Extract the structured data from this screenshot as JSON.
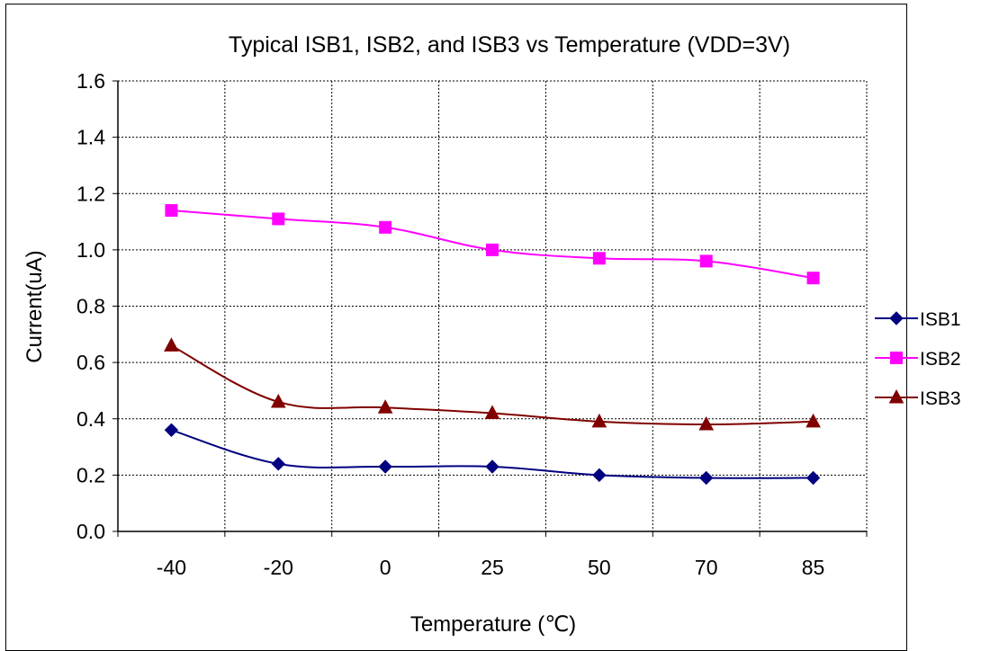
{
  "chart_data": {
    "type": "line",
    "title": "Typical ISB1, ISB2, and ISB3 vs Temperature (VDD=3V)",
    "xlabel": "Temperature (℃)",
    "ylabel": "Current(uA)",
    "categories": [
      "-40",
      "-20",
      "0",
      "25",
      "50",
      "70",
      "85"
    ],
    "ylim": [
      0,
      1.6
    ],
    "yticks": [
      "0.0",
      "0.2",
      "0.4",
      "0.6",
      "0.8",
      "1.0",
      "1.2",
      "1.4",
      "1.6"
    ],
    "grid": true,
    "legend_position": "right",
    "series": [
      {
        "name": "ISB1",
        "values": [
          0.36,
          0.24,
          0.23,
          0.23,
          0.2,
          0.19,
          0.19
        ],
        "color": "#000080",
        "marker": "diamond"
      },
      {
        "name": "ISB2",
        "values": [
          1.14,
          1.11,
          1.08,
          1.0,
          0.97,
          0.96,
          0.9
        ],
        "color": "#FF00FF",
        "marker": "square"
      },
      {
        "name": "ISB3",
        "values": [
          0.66,
          0.46,
          0.44,
          0.42,
          0.39,
          0.38,
          0.39
        ],
        "color": "#800000",
        "marker": "triangle"
      }
    ]
  }
}
